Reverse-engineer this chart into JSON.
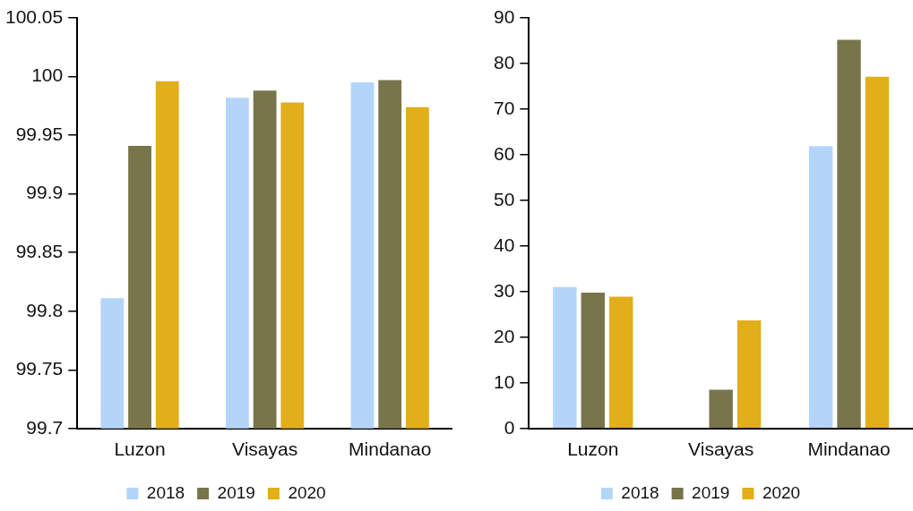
{
  "chart_data": [
    {
      "type": "bar",
      "categories": [
        "Luzon",
        "Visayas",
        "Mindanao"
      ],
      "series": [
        {
          "name": "2018",
          "color": "#b4d5fa",
          "values": [
            99.811,
            99.982,
            99.995
          ]
        },
        {
          "name": "2019",
          "color": "#78754a",
          "values": [
            99.941,
            99.988,
            99.997
          ]
        },
        {
          "name": "2020",
          "color": "#e2ae19",
          "values": [
            99.996,
            99.978,
            99.974
          ]
        }
      ],
      "ylim": [
        99.7,
        100.05
      ],
      "yticks": [
        99.7,
        99.75,
        99.8,
        99.85,
        99.9,
        99.95,
        100,
        100.05
      ],
      "grid": false,
      "legend": "bottom"
    },
    {
      "type": "bar",
      "categories": [
        "Luzon",
        "Visayas",
        "Mindanao"
      ],
      "series": [
        {
          "name": "2018",
          "color": "#b4d5fa",
          "values": [
            31.0,
            null,
            61.9
          ]
        },
        {
          "name": "2019",
          "color": "#78754a",
          "values": [
            29.8,
            8.5,
            85.2
          ]
        },
        {
          "name": "2020",
          "color": "#e2ae19",
          "values": [
            28.9,
            23.7,
            77.1
          ]
        }
      ],
      "ylim": [
        0,
        90
      ],
      "yticks": [
        0,
        10,
        20,
        30,
        40,
        50,
        60,
        70,
        80,
        90
      ],
      "grid": false,
      "legend": "bottom"
    }
  ]
}
